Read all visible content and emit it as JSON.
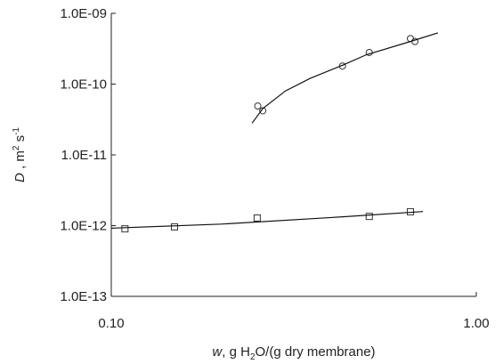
{
  "chart_data": {
    "type": "scatter",
    "xscale": "log",
    "yscale": "log",
    "xlabel_parts": [
      "w",
      ", g H",
      "2",
      "O/(g dry membrane)"
    ],
    "ylabel_parts": [
      "D",
      " , m",
      "2",
      " s",
      "-1"
    ],
    "xlim": [
      0.1,
      1.0
    ],
    "ylim": [
      1e-13,
      1e-09
    ],
    "xticks": [
      {
        "value": 0.1,
        "label": "0.10"
      },
      {
        "value": 1.0,
        "label": "1.00"
      }
    ],
    "yticks": [
      {
        "value": 1e-13,
        "label": "1.0E-13"
      },
      {
        "value": 1e-12,
        "label": "1.0E-12"
      },
      {
        "value": 1e-11,
        "label": "1.0E-11"
      },
      {
        "value": 1e-10,
        "label": "1.0E-10"
      },
      {
        "value": 1e-09,
        "label": "1.0E-09"
      }
    ],
    "series": [
      {
        "marker": "circle",
        "color": "#333333",
        "x": [
          0.252,
          0.26,
          0.43,
          0.509,
          0.66,
          0.679
        ],
        "values": [
          4.9e-11,
          4.2e-11,
          1.8e-10,
          2.8e-10,
          4.4e-10,
          4e-10
        ]
      },
      {
        "marker": "square",
        "color": "#333333",
        "x": [
          0.109,
          0.149,
          0.251,
          0.509,
          0.66
        ],
        "values": [
          9e-13,
          9.6e-13,
          1.28e-12,
          1.35e-12,
          1.57e-12
        ]
      },
      {
        "marker": "line",
        "color": "#111111",
        "x": [
          0.243,
          0.26,
          0.3,
          0.35,
          0.43,
          0.5,
          0.66,
          0.785
        ],
        "values": [
          2.8e-11,
          4.5e-11,
          8e-11,
          1.2e-10,
          1.85e-10,
          2.6e-10,
          4e-10,
          5.3e-10
        ]
      },
      {
        "marker": "line",
        "color": "#111111",
        "x": [
          0.1,
          0.2,
          0.4,
          0.714
        ],
        "values": [
          9.2e-13,
          1.05e-12,
          1.3e-12,
          1.58e-12
        ]
      }
    ]
  }
}
